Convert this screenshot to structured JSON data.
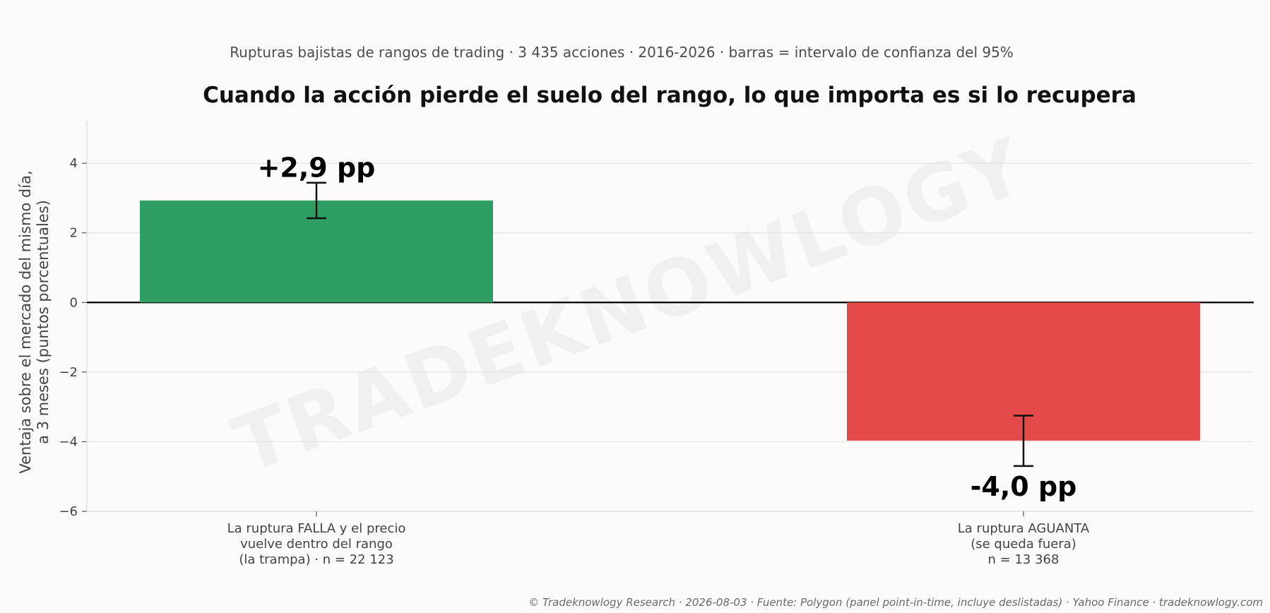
{
  "chart_data": {
    "type": "bar",
    "subtitle": "Rupturas bajistas de rangos de trading · 3 435 acciones · 2016-2026 · barras = intervalo de confianza del 95%",
    "title": "Cuando la acción pierde el suelo del rango, lo que importa es si lo recupera",
    "ylabel_lines": [
      "Ventaja sobre el mercado del mismo día,",
      "a 3 meses (puntos porcentuales)"
    ],
    "ylim": [
      -6,
      5.2
    ],
    "yticks": [
      4,
      2,
      0,
      -2,
      -4,
      -6
    ],
    "ytick_labels": [
      "4",
      "2",
      "0",
      "−2",
      "−4",
      "−6"
    ],
    "grid": true,
    "categories": [
      {
        "label_lines": [
          "La ruptura FALLA y el precio",
          "vuelve dentro del rango",
          "(la trampa) · n = 22 123"
        ],
        "value": 2.93,
        "ci": [
          2.42,
          3.44
        ],
        "value_label": "+2,9 pp",
        "color": "#2e9e62"
      },
      {
        "label_lines": [
          "La ruptura AGUANTA",
          "(se queda fuera)",
          "n = 13 368"
        ],
        "value": -3.97,
        "ci": [
          -4.7,
          -3.25
        ],
        "value_label": "-4,0 pp",
        "color": "#e34a4a"
      }
    ],
    "watermark": "TRADEKNOWLOGY"
  },
  "footer": "© Tradeknowlogy Research   ·   2026-08-03   ·   Fuente: Polygon (panel point-in-time, incluye deslistadas) · Yahoo Finance   ·   tradeknowlogy.com"
}
